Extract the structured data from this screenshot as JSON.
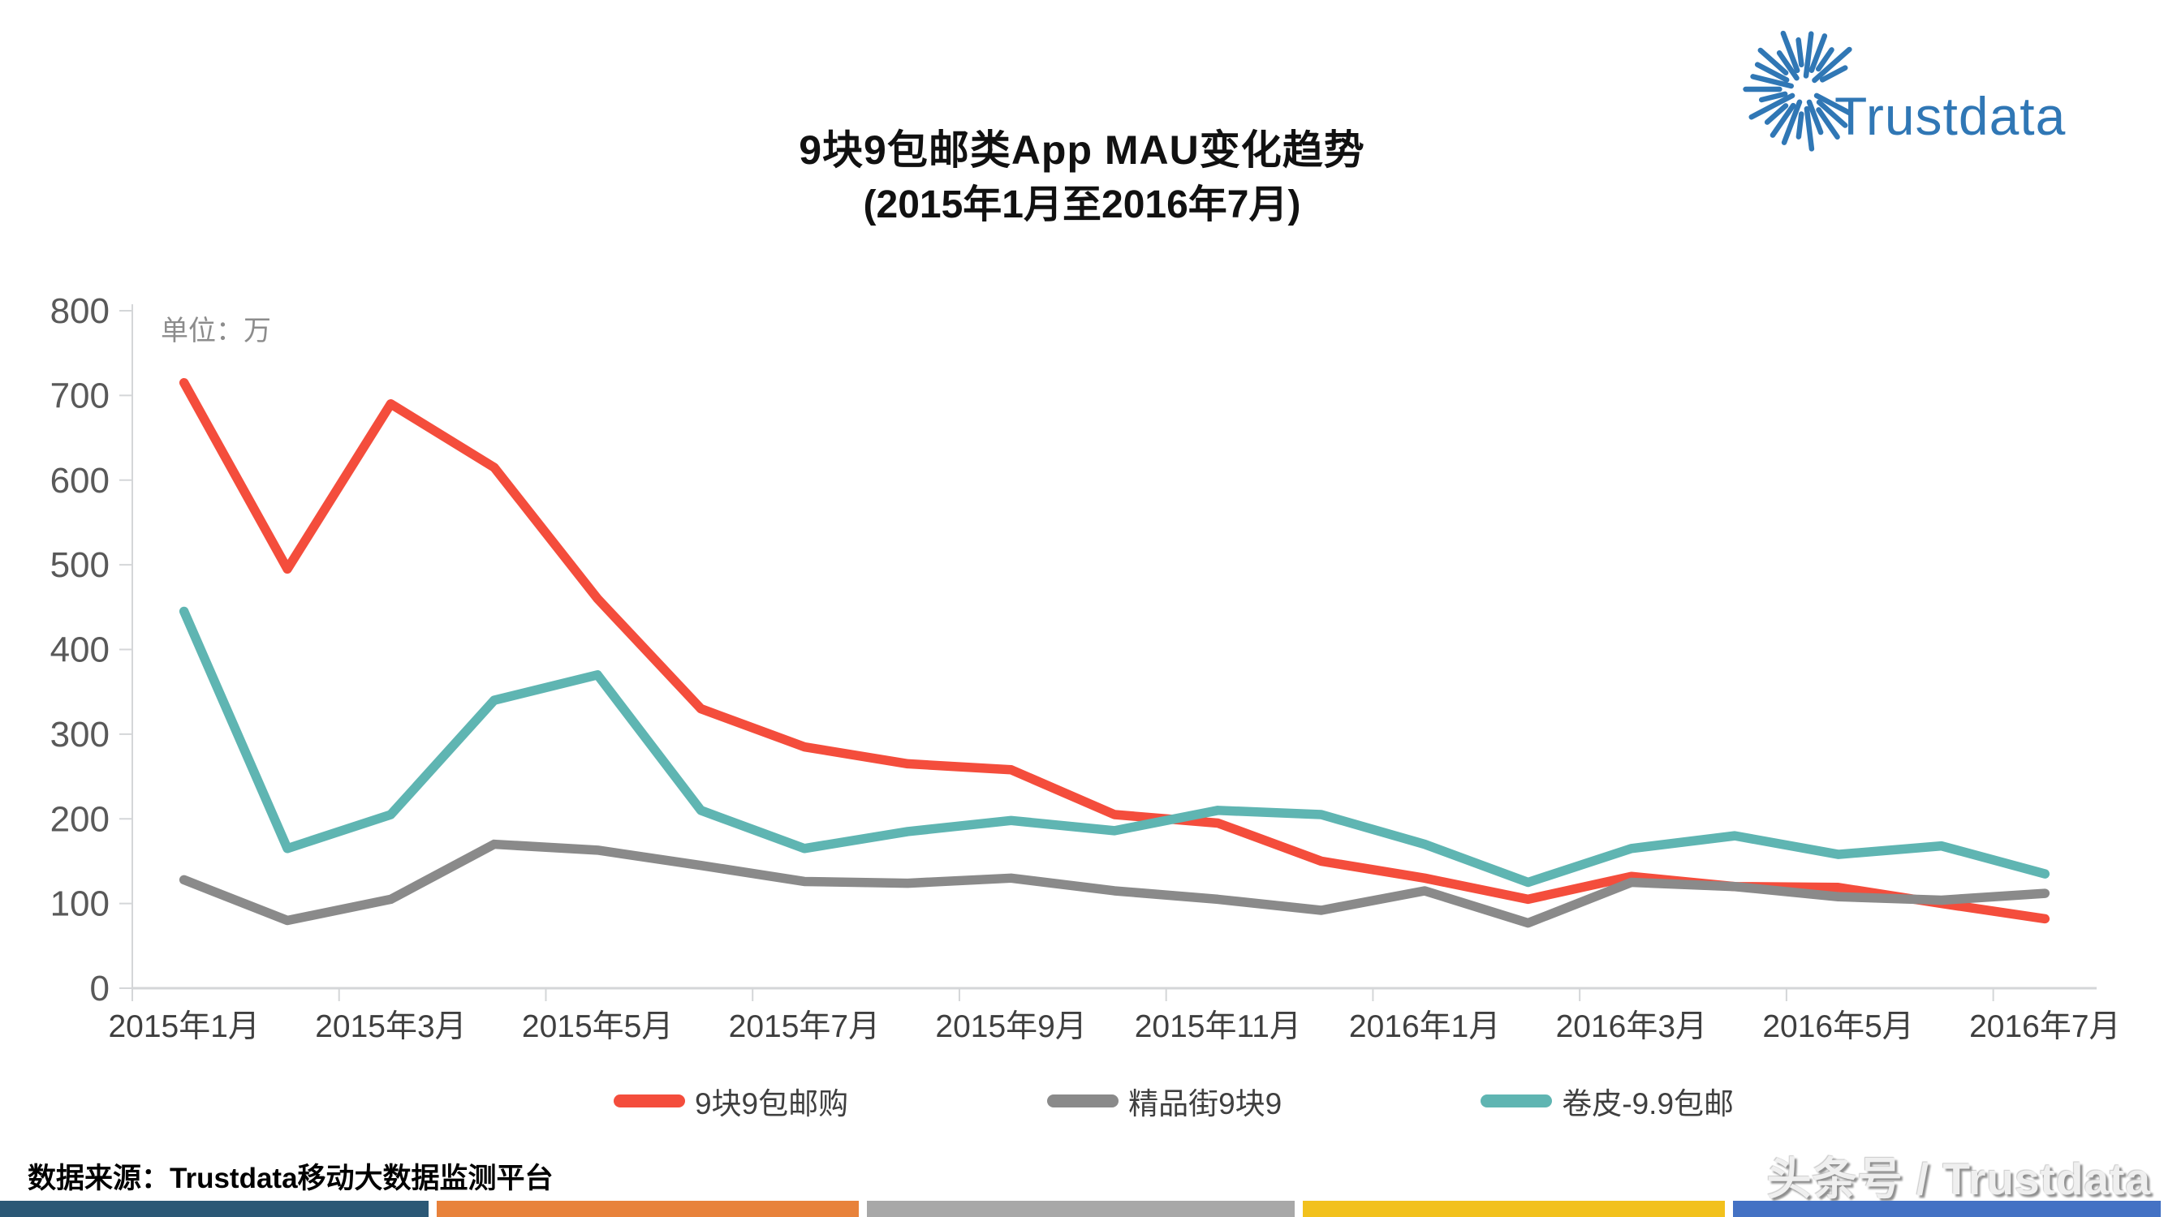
{
  "header": {
    "title_line1": "9块9包邮类App MAU变化趋势",
    "title_line2": "(2015年1月至2016年7月)",
    "logo_text": "Trustdata"
  },
  "chart_data": {
    "type": "line",
    "title": "9块9包邮类App MAU变化趋势 (2015年1月至2016年7月)",
    "unit_label": "单位：万",
    "ylabel": "",
    "xlabel": "",
    "ylim": [
      0,
      800
    ],
    "y_tick_step": 100,
    "grid": false,
    "legend_position": "bottom",
    "categories": [
      "2015年1月",
      "2015年2月",
      "2015年3月",
      "2015年4月",
      "2015年5月",
      "2015年6月",
      "2015年7月",
      "2015年8月",
      "2015年9月",
      "2015年10月",
      "2015年11月",
      "2015年12月",
      "2016年1月",
      "2016年2月",
      "2016年3月",
      "2016年4月",
      "2016年5月",
      "2016年6月",
      "2016年7月"
    ],
    "x_axis_labels": [
      "2015年1月",
      "2015年3月",
      "2015年5月",
      "2015年7月",
      "2015年9月",
      "2015年11月",
      "2016年1月",
      "2016年3月",
      "2016年5月",
      "2016年7月"
    ],
    "series": [
      {
        "name": "9块9包邮购",
        "color": "#F44D3C",
        "values": [
          715,
          495,
          690,
          615,
          460,
          330,
          285,
          265,
          258,
          205,
          195,
          150,
          130,
          105,
          132,
          120,
          119,
          100,
          82
        ]
      },
      {
        "name": "精品街9块9",
        "color": "#8A8A8A",
        "values": [
          128,
          80,
          105,
          170,
          163,
          145,
          126,
          124,
          130,
          115,
          105,
          92,
          115,
          77,
          125,
          120,
          108,
          104,
          112
        ]
      },
      {
        "name": "卷皮-9.9包邮",
        "color": "#5FB5B2",
        "values": [
          445,
          165,
          205,
          340,
          370,
          210,
          165,
          185,
          198,
          186,
          210,
          205,
          170,
          125,
          165,
          180,
          158,
          168,
          135
        ]
      }
    ]
  },
  "footer": {
    "source_text": "数据来源：Trustdata移动大数据监测平台",
    "watermark": "头条号 / Trustdata",
    "bar_colors": [
      "#2B5876",
      "#E8823B",
      "#A8A8A8",
      "#F2C11D",
      "#4472C4"
    ]
  },
  "colors": {
    "axis": "#D4D6D8",
    "y_tick_label": "#595959",
    "x_tick_label": "#3F3F3F",
    "logo_blue": "#3077B5"
  }
}
